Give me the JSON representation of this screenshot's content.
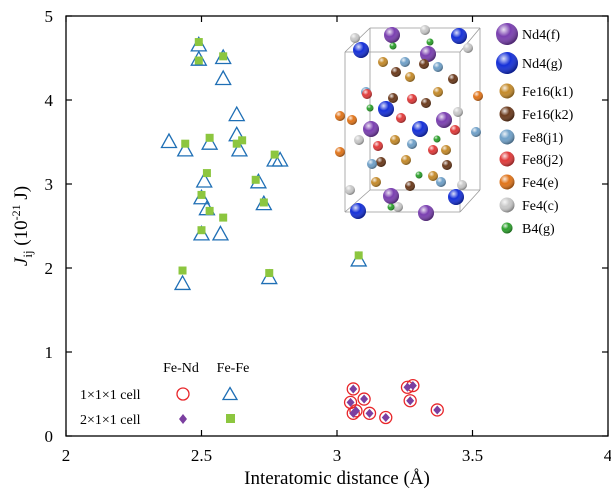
{
  "chart_data": {
    "type": "scatter",
    "xlabel": "Interatomic distance (Å)",
    "ylabel_main": "J",
    "ylabel_sub": "ij",
    "ylabel_unit_pre": " (10",
    "ylabel_unit_sup": "-21",
    "ylabel_unit_post": " J)",
    "xlim": [
      2,
      4
    ],
    "ylim": [
      0,
      5
    ],
    "xticks": [
      "2",
      "2.5",
      "3",
      "3.5",
      "4"
    ],
    "yticks": [
      "0",
      "1",
      "2",
      "3",
      "4",
      "5"
    ],
    "legend": {
      "col_fe_nd": "Fe-Nd",
      "col_fe_fe": "Fe-Fe",
      "row_1x1x1": "1×1×1 cell",
      "row_2x1x1": "2×1×1 cell"
    },
    "colors": {
      "fe_nd": "#e8262a",
      "fe_nd_fill": "#7b3fa0",
      "fe_fe": "#1f6fb5",
      "fe_fe_fill": "#8cc63f"
    },
    "series": [
      {
        "name": "Fe-Fe 1×1×1 cell",
        "marker": "triangle-open",
        "points": [
          [
            2.38,
            3.5
          ],
          [
            2.44,
            3.4
          ],
          [
            2.49,
            4.65
          ],
          [
            2.49,
            4.48
          ],
          [
            2.53,
            3.48
          ],
          [
            2.58,
            4.5
          ],
          [
            2.58,
            4.25
          ],
          [
            2.63,
            3.82
          ],
          [
            2.63,
            3.58
          ],
          [
            2.64,
            3.4
          ],
          [
            2.51,
            3.03
          ],
          [
            2.5,
            2.83
          ],
          [
            2.52,
            2.7
          ],
          [
            2.5,
            2.4
          ],
          [
            2.57,
            2.4
          ],
          [
            2.71,
            3.02
          ],
          [
            2.73,
            2.76
          ],
          [
            2.77,
            3.28
          ],
          [
            2.79,
            3.28
          ],
          [
            2.43,
            1.81
          ],
          [
            2.75,
            1.88
          ],
          [
            3.08,
            2.09
          ]
        ]
      },
      {
        "name": "Fe-Fe 2×1×1 cell",
        "marker": "square-filled",
        "points": [
          [
            2.44,
            3.48
          ],
          [
            2.49,
            4.69
          ],
          [
            2.49,
            4.47
          ],
          [
            2.58,
            4.52
          ],
          [
            2.53,
            3.55
          ],
          [
            2.63,
            3.48
          ],
          [
            2.65,
            3.52
          ],
          [
            2.52,
            3.13
          ],
          [
            2.5,
            2.87
          ],
          [
            2.53,
            2.68
          ],
          [
            2.58,
            2.6
          ],
          [
            2.5,
            2.45
          ],
          [
            2.7,
            3.05
          ],
          [
            2.73,
            2.78
          ],
          [
            2.77,
            3.35
          ],
          [
            2.43,
            1.97
          ],
          [
            2.75,
            1.94
          ],
          [
            3.08,
            2.15
          ]
        ]
      },
      {
        "name": "Fe-Nd 1×1×1 cell",
        "marker": "circle-open",
        "points": [
          [
            3.06,
            0.56
          ],
          [
            3.05,
            0.4
          ],
          [
            3.07,
            0.3
          ],
          [
            3.06,
            0.27
          ],
          [
            3.1,
            0.44
          ],
          [
            3.12,
            0.27
          ],
          [
            3.18,
            0.22
          ],
          [
            3.26,
            0.58
          ],
          [
            3.28,
            0.6
          ],
          [
            3.27,
            0.42
          ],
          [
            3.37,
            0.31
          ]
        ]
      },
      {
        "name": "Fe-Nd 2×1×1 cell",
        "marker": "diamond-filled",
        "points": [
          [
            3.06,
            0.56
          ],
          [
            3.05,
            0.4
          ],
          [
            3.07,
            0.3
          ],
          [
            3.06,
            0.27
          ],
          [
            3.1,
            0.44
          ],
          [
            3.12,
            0.27
          ],
          [
            3.18,
            0.22
          ],
          [
            3.26,
            0.58
          ],
          [
            3.28,
            0.6
          ],
          [
            3.27,
            0.42
          ],
          [
            3.37,
            0.31
          ]
        ]
      }
    ],
    "inset": {
      "legend": [
        {
          "label": "Nd4(f)",
          "color": "#7a3fb0"
        },
        {
          "label": "Nd4(g)",
          "color": "#1530d8"
        },
        {
          "label": "Fe16(k1)",
          "color": "#c48a2a"
        },
        {
          "label": "Fe16(k2)",
          "color": "#6b3a1c"
        },
        {
          "label": "Fe8(j1)",
          "color": "#6fa0c8"
        },
        {
          "label": "Fe8(j2)",
          "color": "#e03a3a"
        },
        {
          "label": "Fe4(e)",
          "color": "#e0741a"
        },
        {
          "label": "Fe4(c)",
          "color": "#c8c8c8"
        },
        {
          "label": "B4(g)",
          "color": "#2ca02c"
        }
      ]
    }
  }
}
